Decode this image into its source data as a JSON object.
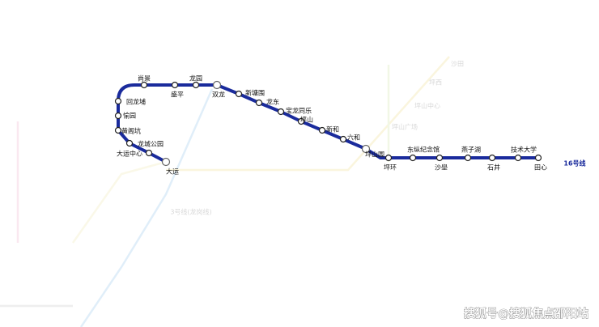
{
  "line": {
    "name": "16号线",
    "color": "#1a2b9c",
    "stations": [
      {
        "name": "大运"
      },
      {
        "name": "大运中心"
      },
      {
        "name": "龙城公园"
      },
      {
        "name": "黄阁坑"
      },
      {
        "name": "愉园"
      },
      {
        "name": "回龙埔"
      },
      {
        "name": "尚景"
      },
      {
        "name": "盛平"
      },
      {
        "name": "龙园"
      },
      {
        "name": "双龙"
      },
      {
        "name": "新塘围"
      },
      {
        "name": "龙东"
      },
      {
        "name": "宝龙同乐"
      },
      {
        "name": "坪山"
      },
      {
        "name": "新和"
      },
      {
        "name": "六和"
      },
      {
        "name": "坪山围"
      },
      {
        "name": "坪环"
      },
      {
        "name": "东纵纪念馆"
      },
      {
        "name": "沙壆"
      },
      {
        "name": "燕子湖"
      },
      {
        "name": "石井"
      },
      {
        "name": "技术大学"
      },
      {
        "name": "田心"
      }
    ]
  },
  "background_labels": [
    "3号线(龙岗线)",
    "坪山中心",
    "坪山广场",
    "坪西",
    "沙田"
  ],
  "watermark": "搜狐号@搜狐焦点邵阳站"
}
